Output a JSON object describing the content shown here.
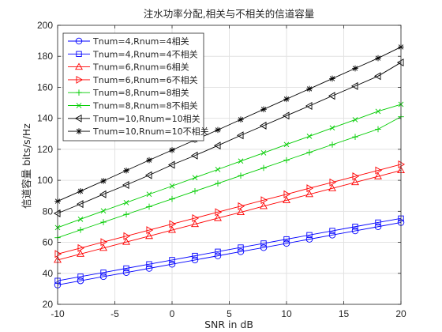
{
  "chart_data": {
    "type": "line",
    "title": "注水功率分配,相关与不相关的信道容量",
    "xlabel": "SNR in dB",
    "ylabel": "信道容量 bits/s/Hz",
    "xlim": [
      -10,
      20
    ],
    "ylim": [
      20,
      200
    ],
    "xticks": [
      "-10",
      "-5",
      "0",
      "5",
      "10",
      "15",
      "20"
    ],
    "yticks": [
      "20",
      "40",
      "60",
      "80",
      "100",
      "120",
      "140",
      "160",
      "180",
      "200"
    ],
    "grid": true,
    "legend_position": "top-left",
    "x": [
      -10,
      -8,
      -6,
      -4,
      -2,
      0,
      2,
      4,
      6,
      8,
      10,
      12,
      14,
      16,
      18,
      20
    ],
    "series": [
      {
        "name": "Tnum=4,Rnum=4相关",
        "color": "#0000ff",
        "marker": "circle",
        "values": [
          32.5,
          35.2,
          37.9,
          40.5,
          43.2,
          45.9,
          48.6,
          51.3,
          54.0,
          56.6,
          59.3,
          62.0,
          64.7,
          67.4,
          70.1,
          72.8
        ]
      },
      {
        "name": "Tnum=4,Rnum=4不相关",
        "color": "#0000ff",
        "marker": "square",
        "values": [
          35.2,
          37.9,
          40.5,
          43.2,
          45.9,
          48.6,
          51.3,
          54.0,
          56.7,
          59.3,
          62.0,
          64.7,
          67.4,
          70.1,
          72.8,
          75.4
        ]
      },
      {
        "name": "Tnum=6,Rnum=6相关",
        "color": "#ff0000",
        "marker": "triangle-up",
        "values": [
          48.6,
          52.5,
          56.3,
          60.2,
          64.0,
          67.9,
          71.7,
          75.6,
          79.4,
          83.3,
          87.1,
          91.0,
          94.8,
          98.7,
          102.5,
          106.4
        ]
      },
      {
        "name": "Tnum=6,Rnum=6不相关",
        "color": "#ff0000",
        "marker": "triangle-right",
        "values": [
          52.5,
          56.3,
          60.2,
          64.0,
          67.9,
          71.8,
          75.6,
          79.5,
          83.3,
          87.2,
          91.0,
          94.9,
          98.7,
          102.6,
          106.4,
          110.3
        ]
      },
      {
        "name": "Tnum=8,Rnum=8相关",
        "color": "#00cc00",
        "marker": "plus",
        "values": [
          63.0,
          68.0,
          73.0,
          78.0,
          83.0,
          88.0,
          93.0,
          98.0,
          103.0,
          108.0,
          113.0,
          118.0,
          123.0,
          128.0,
          133.0,
          141.0
        ]
      },
      {
        "name": "Tnum=8,Rnum=8不相关",
        "color": "#00cc00",
        "marker": "x",
        "values": [
          69.5,
          74.9,
          80.3,
          85.6,
          91.0,
          96.3,
          101.7,
          107.0,
          112.4,
          117.7,
          123.1,
          128.4,
          133.8,
          139.1,
          144.5,
          149.0
        ]
      },
      {
        "name": "Tnum=10,Rnum=10相关",
        "color": "#000000",
        "marker": "triangle-left",
        "values": [
          78.7,
          84.7,
          91.0,
          97.0,
          103.3,
          110.0,
          116.0,
          122.4,
          129.0,
          135.3,
          141.7,
          148.0,
          154.5,
          160.8,
          167.2,
          176.0
        ]
      },
      {
        "name": "Tnum=10,Rnum=10不相关",
        "color": "#000000",
        "marker": "star",
        "values": [
          86.5,
          93.0,
          99.6,
          106.3,
          113.0,
          119.5,
          126.0,
          132.5,
          139.2,
          145.8,
          152.4,
          159.0,
          165.6,
          172.2,
          178.8,
          186.0
        ]
      }
    ]
  }
}
